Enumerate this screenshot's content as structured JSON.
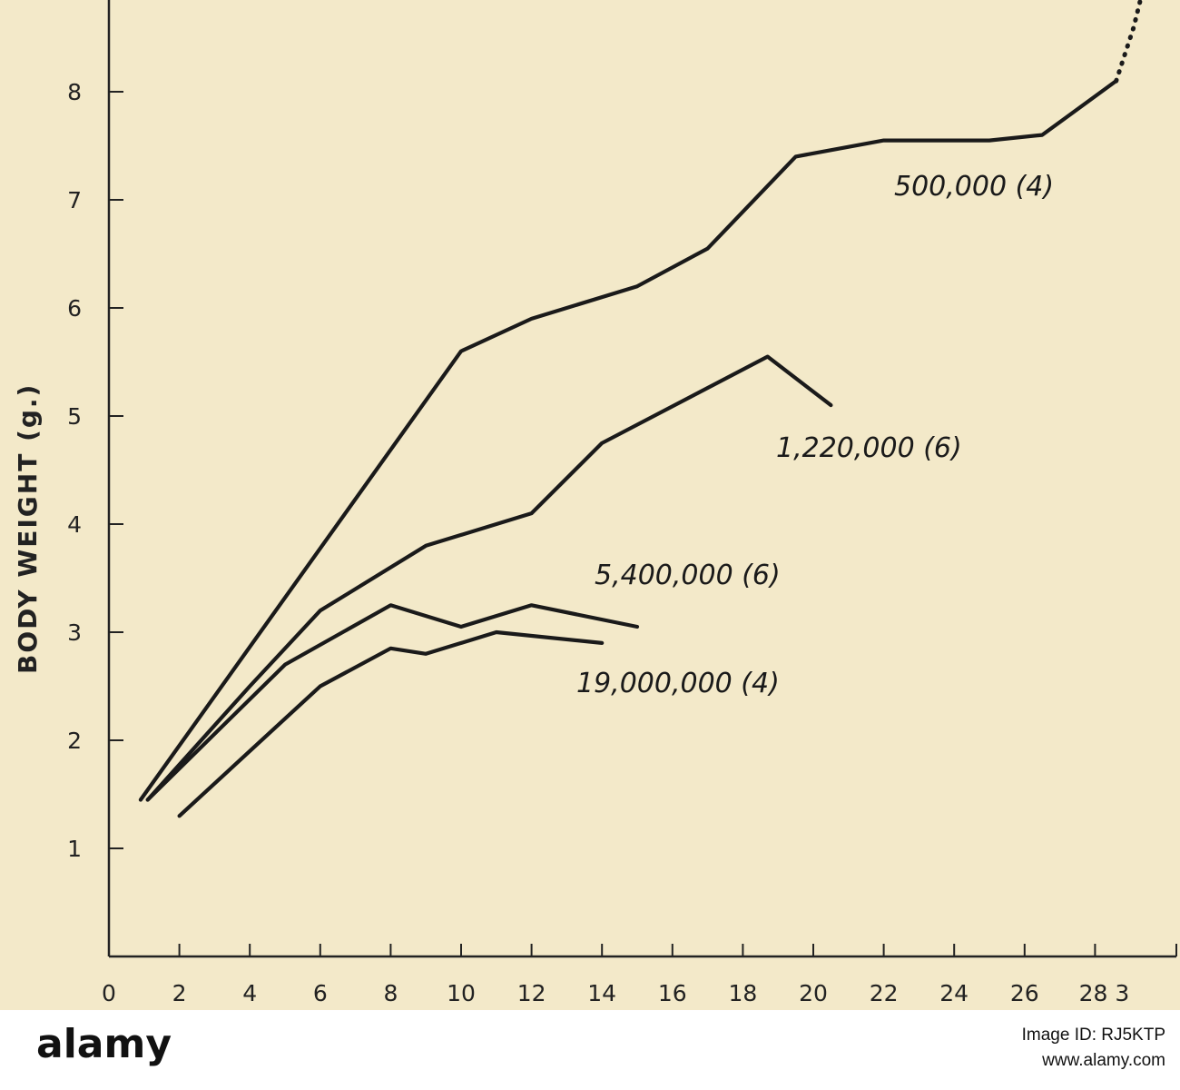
{
  "chart_data": {
    "type": "line",
    "title": "",
    "xlabel": "",
    "ylabel": "BODY WEIGHT (g.)",
    "xlim": [
      0,
      30
    ],
    "ylim": [
      0,
      9
    ],
    "xticks": [
      0,
      2,
      4,
      6,
      8,
      10,
      12,
      14,
      16,
      18,
      20,
      22,
      24,
      26,
      28
    ],
    "xtick_labels": [
      "0",
      "2",
      "4",
      "6",
      "8",
      "10",
      "12",
      "14",
      "16",
      "18",
      "20",
      "22",
      "24",
      "26",
      "28 3"
    ],
    "yticks": [
      1,
      2,
      3,
      4,
      5,
      6,
      7,
      8
    ],
    "ytick_labels": [
      "1",
      "2",
      "3",
      "4",
      "5",
      "6",
      "7",
      "8"
    ],
    "grid": false,
    "series": [
      {
        "name": "500,000 (4)",
        "points": [
          [
            0.9,
            1.45
          ],
          [
            10,
            5.6
          ],
          [
            12,
            5.9
          ],
          [
            15,
            6.2
          ],
          [
            17,
            6.55
          ],
          [
            19.5,
            7.4
          ],
          [
            22,
            7.55
          ],
          [
            25,
            7.55
          ],
          [
            26.5,
            7.6
          ],
          [
            28.6,
            8.1
          ]
        ],
        "dotted_extension": [
          [
            28.6,
            8.1
          ],
          [
            29.1,
            8.6
          ],
          [
            29.7,
            9.4
          ]
        ]
      },
      {
        "name": "1,220,000 (6)",
        "points": [
          [
            1.1,
            1.45
          ],
          [
            4,
            2.5
          ],
          [
            6,
            3.2
          ],
          [
            9,
            3.8
          ],
          [
            12,
            4.1
          ],
          [
            14,
            4.75
          ],
          [
            18.7,
            5.55
          ],
          [
            20.5,
            5.1
          ]
        ]
      },
      {
        "name": "5,400,000 (6)",
        "points": [
          [
            1.1,
            1.45
          ],
          [
            5,
            2.7
          ],
          [
            8,
            3.25
          ],
          [
            10,
            3.05
          ],
          [
            12,
            3.25
          ],
          [
            15,
            3.05
          ]
        ]
      },
      {
        "name": "19,000,000 (4)",
        "points": [
          [
            2,
            1.3
          ],
          [
            6,
            2.5
          ],
          [
            8,
            2.85
          ],
          [
            9,
            2.8
          ],
          [
            11,
            3.0
          ],
          [
            14,
            2.9
          ]
        ]
      }
    ]
  },
  "footer": {
    "brand": "alamy",
    "image_id": "Image ID: RJ5KTP",
    "site": "www.alamy.com"
  }
}
